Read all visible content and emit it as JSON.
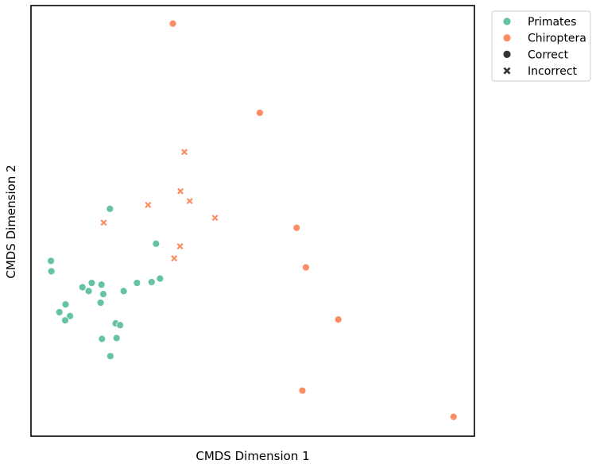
{
  "chart_data": {
    "type": "scatter",
    "title": "",
    "xlabel": "CMDS Dimension 1",
    "ylabel": "CMDS Dimension 2",
    "xlim": [
      0,
      1
    ],
    "ylim": [
      0,
      1
    ],
    "grid": false,
    "ticks": false,
    "legend_placement": "outside-top-right",
    "colors": {
      "Primates": "#66c2a5",
      "Chiroptera": "#fc8d62",
      "style": "#333333"
    },
    "legend": [
      {
        "label": "Primates",
        "marker": "circle",
        "color": "#66c2a5"
      },
      {
        "label": "Chiroptera",
        "marker": "circle",
        "color": "#fc8d62"
      },
      {
        "label": "Correct",
        "marker": "circle",
        "color": "#333333"
      },
      {
        "label": "Incorrect",
        "marker": "x",
        "color": "#333333"
      }
    ],
    "series": [
      {
        "group": "Primates",
        "style": "Correct",
        "marker": "circle",
        "points": [
          [
            0.178,
            0.528
          ],
          [
            0.045,
            0.407
          ],
          [
            0.046,
            0.383
          ],
          [
            0.282,
            0.447
          ],
          [
            0.116,
            0.346
          ],
          [
            0.137,
            0.356
          ],
          [
            0.13,
            0.337
          ],
          [
            0.159,
            0.352
          ],
          [
            0.163,
            0.33
          ],
          [
            0.209,
            0.337
          ],
          [
            0.239,
            0.356
          ],
          [
            0.272,
            0.358
          ],
          [
            0.291,
            0.366
          ],
          [
            0.157,
            0.31
          ],
          [
            0.078,
            0.306
          ],
          [
            0.064,
            0.288
          ],
          [
            0.088,
            0.279
          ],
          [
            0.077,
            0.269
          ],
          [
            0.191,
            0.262
          ],
          [
            0.201,
            0.258
          ],
          [
            0.16,
            0.226
          ],
          [
            0.193,
            0.228
          ],
          [
            0.179,
            0.186
          ]
        ]
      },
      {
        "group": "Chiroptera",
        "style": "Correct",
        "marker": "circle",
        "points": [
          [
            0.32,
            0.958
          ],
          [
            0.516,
            0.751
          ],
          [
            0.599,
            0.484
          ],
          [
            0.62,
            0.392
          ],
          [
            0.693,
            0.271
          ],
          [
            0.612,
            0.106
          ],
          [
            0.953,
            0.045
          ]
        ]
      },
      {
        "group": "Chiroptera",
        "style": "Incorrect",
        "marker": "x",
        "points": [
          [
            0.346,
            0.66
          ],
          [
            0.337,
            0.569
          ],
          [
            0.358,
            0.546
          ],
          [
            0.264,
            0.537
          ],
          [
            0.415,
            0.507
          ],
          [
            0.164,
            0.496
          ],
          [
            0.336,
            0.441
          ],
          [
            0.323,
            0.413
          ]
        ]
      }
    ]
  }
}
